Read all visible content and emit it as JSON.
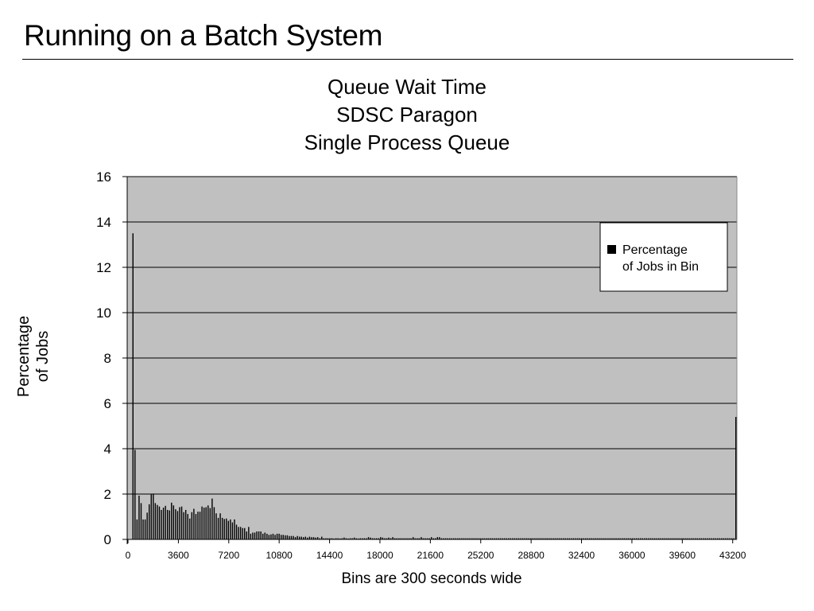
{
  "slide": {
    "title": "Running on a Batch System"
  },
  "chart_data": {
    "type": "bar",
    "title_lines": [
      "Queue Wait Time",
      "SDSC Paragon",
      "Single Process Queue"
    ],
    "ylabel_lines": [
      "Percentage",
      "of Jobs"
    ],
    "xlabel": "Bins are 300 seconds wide",
    "ylim": [
      0,
      16
    ],
    "y_ticks": [
      0,
      2,
      4,
      6,
      8,
      10,
      12,
      14,
      16
    ],
    "xlim": [
      0,
      43500
    ],
    "x_ticks": [
      0,
      3600,
      7200,
      10800,
      14400,
      18000,
      21600,
      25200,
      28800,
      32400,
      36000,
      39600,
      43200
    ],
    "grid": true,
    "legend_position": "top-right",
    "series": [
      {
        "name": "Percentage of Jobs in Bin",
        "color": "#000000",
        "bin_width": 300,
        "x_start": 300,
        "values": [
          13.5,
          3.95,
          0.88,
          1.93,
          1.6,
          0.88,
          0.88,
          1.18,
          1.55,
          1.98,
          2.02,
          1.6,
          1.52,
          1.45,
          1.3,
          1.4,
          1.48,
          1.3,
          1.28,
          1.62,
          1.5,
          1.33,
          1.25,
          1.42,
          1.45,
          1.2,
          1.3,
          1.12,
          0.92,
          1.2,
          1.35,
          1.12,
          1.22,
          1.22,
          1.45,
          1.4,
          1.42,
          1.5,
          1.38,
          1.8,
          1.42,
          1.15,
          0.95,
          1.15,
          0.95,
          0.9,
          0.92,
          0.82,
          0.88,
          0.75,
          0.88,
          0.65,
          0.55,
          0.55,
          0.5,
          0.5,
          0.35,
          0.55,
          0.25,
          0.3,
          0.3,
          0.35,
          0.35,
          0.35,
          0.25,
          0.3,
          0.25,
          0.2,
          0.22,
          0.25,
          0.2,
          0.25,
          0.25,
          0.2,
          0.2,
          0.18,
          0.18,
          0.15,
          0.15,
          0.15,
          0.1,
          0.15,
          0.12,
          0.12,
          0.1,
          0.12,
          0.08,
          0.12,
          0.1,
          0.1,
          0.08,
          0.1,
          0.05,
          0.12,
          0.05,
          0.05,
          0.05,
          0.05,
          0.05,
          0.04,
          0.05,
          0.05,
          0.04,
          0.05,
          0.08,
          0.05,
          0.04,
          0.05,
          0.05,
          0.08,
          0.05,
          0.04,
          0.05,
          0.05,
          0.05,
          0.05,
          0.1,
          0.08,
          0.05,
          0.05,
          0.05,
          0.05,
          0.1,
          0.08,
          0.05,
          0.05,
          0.08,
          0.05,
          0.1,
          0.05,
          0.05,
          0.05,
          0.05,
          0.05,
          0.05,
          0.05,
          0.05,
          0.05,
          0.1,
          0.05,
          0.05,
          0.05,
          0.1,
          0.05,
          0.05,
          0.05,
          0.05,
          0.1,
          0.05,
          0.05,
          0.1,
          0.1,
          0.05,
          0.05,
          0.05,
          0.05,
          0.05,
          0.05,
          0.05,
          0.05,
          0.05,
          0.05,
          0.05,
          0.05,
          0.05,
          0.05,
          0.05,
          0.05,
          0.05,
          0.05,
          0.05,
          0.05,
          0.05,
          0.05,
          0.05,
          0.05,
          0.05,
          0.05,
          0.05,
          0.05,
          0.05,
          0.05,
          0.05,
          0.05,
          0.05,
          0.05,
          0.05,
          0.05,
          0.05,
          0.05,
          0.05,
          0.05,
          0.05,
          0.05,
          0.05,
          0.05,
          0.05,
          0.05,
          0.05,
          0.05,
          0.05,
          0.05,
          0.05,
          0.05,
          0.05,
          0.05,
          0.05,
          0.05,
          0.05,
          0.05,
          0.05,
          0.05,
          0.05,
          0.05,
          0.05,
          0.05,
          0.05,
          0.05,
          0.05,
          0.05,
          0.05,
          0.05,
          0.05,
          0.05,
          0.05,
          0.05,
          0.05,
          0.05,
          0.05,
          0.05,
          0.05,
          0.05,
          0.05,
          0.05,
          0.05,
          0.05,
          0.05,
          0.05,
          0.05,
          0.05,
          0.05,
          0.05,
          0.05,
          0.05,
          0.05,
          0.05,
          0.05,
          0.05,
          0.05,
          0.05,
          0.05,
          0.05,
          0.05,
          0.05,
          0.05,
          0.05,
          0.05,
          0.05,
          0.05,
          0.05,
          0.05,
          0.05,
          0.05,
          0.05,
          0.05,
          0.05,
          0.05,
          0.05,
          0.05,
          0.05,
          0.05,
          0.05,
          0.05,
          0.05,
          0.05,
          0.05,
          0.05,
          0.05,
          0.05,
          0.05,
          0.05,
          0.05,
          0.05,
          0.05,
          0.05,
          0.05,
          0.05,
          0.05,
          0.05,
          0.05,
          0.05,
          0.05,
          0.05,
          0.05,
          0.05,
          0.05,
          0.05,
          5.4
        ]
      }
    ]
  }
}
